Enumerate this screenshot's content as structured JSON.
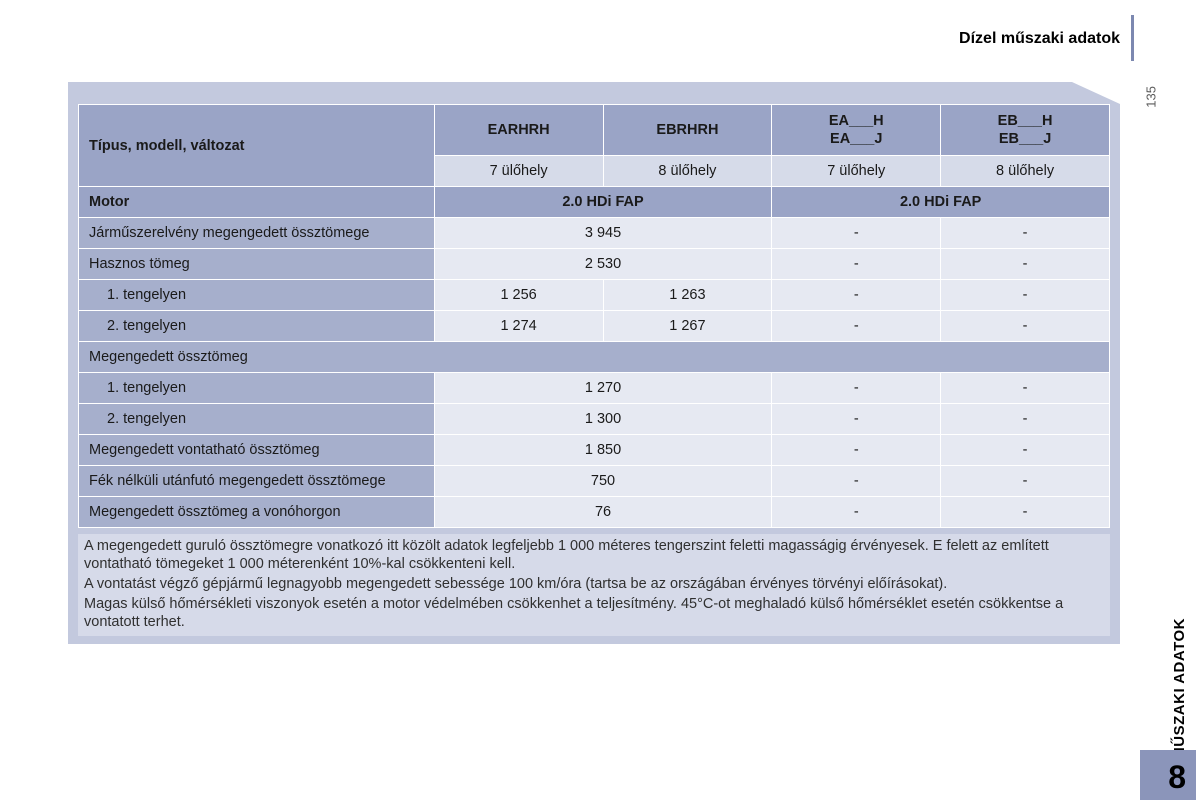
{
  "page": {
    "title": "Dízel műszaki adatok",
    "number": "135",
    "side_tab_label": "MŰSZAKI ADATOK",
    "side_tab_number": "8"
  },
  "table": {
    "header_label": "Típus, modell, változat",
    "variants": [
      {
        "code": "EARHRH",
        "code2": "",
        "seats": "7 ülőhely"
      },
      {
        "code": "EBRHRH",
        "code2": "",
        "seats": "8 ülőhely"
      },
      {
        "code": "EA___H",
        "code2": "EA___J",
        "seats": "7 ülőhely"
      },
      {
        "code": "EB___H",
        "code2": "EB___J",
        "seats": "8 ülőhely"
      }
    ],
    "motor_label": "Motor",
    "motor_left": "2.0 HDi FAP",
    "motor_right": "2.0 HDi FAP",
    "rows": {
      "train_mass": {
        "label": "Járműszerelvény megengedett össztömege",
        "merged12": "3 945",
        "c3": "-",
        "c4": "-"
      },
      "payload": {
        "label": "Hasznos tömeg",
        "merged12": "2 530",
        "c3": "-",
        "c4": "-"
      },
      "axle1_a": {
        "label": "1. tengelyen",
        "c1": "1 256",
        "c2": "1 263",
        "c3": "-",
        "c4": "-"
      },
      "axle2_a": {
        "label": "2. tengelyen",
        "c1": "1 274",
        "c2": "1 267",
        "c3": "-",
        "c4": "-"
      },
      "gross_mass_section": "Megengedett össztömeg",
      "axle1_b": {
        "label": "1. tengelyen",
        "merged12": "1 270",
        "c3": "-",
        "c4": "-"
      },
      "axle2_b": {
        "label": "2. tengelyen",
        "merged12": "1 300",
        "c3": "-",
        "c4": "-"
      },
      "tow_braked": {
        "label": "Megengedett vontatható össztömeg",
        "merged12": "1 850",
        "c3": "-",
        "c4": "-"
      },
      "tow_unbraked": {
        "label": "Fék nélküli utánfutó megengedett össztömege",
        "merged12": "750",
        "c3": "-",
        "c4": "-"
      },
      "hook_load": {
        "label": "Megengedett össztömeg a vonóhorgon",
        "merged12": "76",
        "c3": "-",
        "c4": "-"
      }
    },
    "notes": [
      "A megengedett guruló össztömegre vonatkozó itt közölt adatok legfeljebb 1 000 méteres tengerszint feletti magasságig érvényesek. E felett az említett vontatható tömegeket 1 000 méterenként 10%-kal csökkenteni kell.",
      "A vontatást végző gépjármű legnagyobb megengedett sebessége 100 km/óra (tartsa be az országában érvényes törvényi előírásokat).",
      "Magas külső hőmérsékleti viszonyok esetén a motor védelmében csökkenhet a teljesítmény. 45°C-ot meghaladó külső hőmérséklet esetén csökkentse a vontatott terhet."
    ]
  },
  "colors": {
    "panel": "#c3c9de",
    "hdr": "#9aa4c6",
    "subhdr": "#d6dbe9",
    "rowhead": "#a6afcc",
    "cell": "#e6e9f2",
    "tab": "#8b95ba"
  }
}
